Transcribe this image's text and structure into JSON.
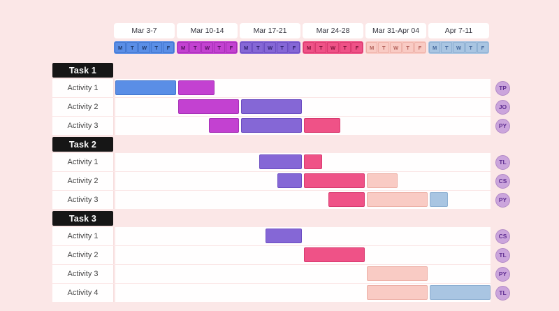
{
  "page": {
    "background": "#FBE7E7",
    "row_background": "#FFFEFE",
    "task_header_background": "#161616"
  },
  "palette": {
    "blue": {
      "fill": "#5A8EE6",
      "border": "#4276CE",
      "text": "#1E3A6E"
    },
    "magenta": {
      "fill": "#C341D1",
      "border": "#A630B6",
      "text": "#531060"
    },
    "purple": {
      "fill": "#8567D6",
      "border": "#6C4DC2",
      "text": "#2F2070"
    },
    "pink": {
      "fill": "#EF5287",
      "border": "#D83A6F",
      "text": "#7C1238"
    },
    "light_pink": {
      "fill": "#F9CBC4",
      "border": "#EDB0A7",
      "text": "#B3615A"
    },
    "light_blue": {
      "fill": "#A9C5E2",
      "border": "#8DAFD2",
      "text": "#46699C"
    }
  },
  "badge_style": {
    "bg": "#CBA5DC",
    "border": "#B289C7",
    "text_color": "#5F2D91"
  },
  "header": {
    "weeks": [
      {
        "label": "Mar 3-7",
        "color": "blue"
      },
      {
        "label": "Mar 10-14",
        "color": "magenta"
      },
      {
        "label": "Mar 17-21",
        "color": "purple"
      },
      {
        "label": "Mar 24-28",
        "color": "pink"
      },
      {
        "label": "Mar 31-Apr 04",
        "color": "light_pink"
      },
      {
        "label": "Apr 7-11",
        "color": "light_blue"
      }
    ],
    "day_labels": [
      "M",
      "T",
      "W",
      "T",
      "F"
    ]
  },
  "chart_data": {
    "type": "bar",
    "subtype": "gantt-weekly",
    "days_per_week": 5,
    "total_days": 30,
    "x_categories": [
      "Mar 3-7",
      "Mar 10-14",
      "Mar 17-21",
      "Mar 24-28",
      "Mar 31-Apr 04",
      "Apr 7-11"
    ],
    "tasks": [
      {
        "name": "Task 1",
        "activities": [
          {
            "name": "Activity 1",
            "assignee": "TP",
            "segments": [
              {
                "start": 0,
                "end": 5,
                "color": "blue"
              },
              {
                "start": 5,
                "end": 8,
                "color": "magenta"
              }
            ]
          },
          {
            "name": "Activity 2",
            "assignee": "JO",
            "segments": [
              {
                "start": 5,
                "end": 10,
                "color": "magenta"
              },
              {
                "start": 10,
                "end": 15,
                "color": "purple"
              }
            ]
          },
          {
            "name": "Activity 3",
            "assignee": "PY",
            "segments": [
              {
                "start": 7.5,
                "end": 10,
                "color": "magenta"
              },
              {
                "start": 10,
                "end": 15,
                "color": "purple"
              },
              {
                "start": 15,
                "end": 18,
                "color": "pink"
              }
            ]
          }
        ]
      },
      {
        "name": "Task 2",
        "activities": [
          {
            "name": "Activity 1",
            "assignee": "TL",
            "segments": [
              {
                "start": 11.5,
                "end": 15,
                "color": "purple"
              },
              {
                "start": 15,
                "end": 16.5,
                "color": "pink"
              }
            ]
          },
          {
            "name": "Activity 2",
            "assignee": "CS",
            "segments": [
              {
                "start": 13,
                "end": 15,
                "color": "purple"
              },
              {
                "start": 15,
                "end": 20,
                "color": "pink"
              },
              {
                "start": 20,
                "end": 22.5,
                "color": "light_pink"
              }
            ]
          },
          {
            "name": "Activity 3",
            "assignee": "PY",
            "segments": [
              {
                "start": 17,
                "end": 20,
                "color": "pink"
              },
              {
                "start": 20,
                "end": 25,
                "color": "light_pink"
              },
              {
                "start": 25,
                "end": 26.5,
                "color": "light_blue"
              }
            ]
          }
        ]
      },
      {
        "name": "Task 3",
        "activities": [
          {
            "name": "Activity 1",
            "assignee": "CS",
            "segments": [
              {
                "start": 12,
                "end": 15,
                "color": "purple"
              }
            ]
          },
          {
            "name": "Activity 2",
            "assignee": "TL",
            "segments": [
              {
                "start": 15,
                "end": 20,
                "color": "pink"
              }
            ]
          },
          {
            "name": "Activity 3",
            "assignee": "PY",
            "segments": [
              {
                "start": 20,
                "end": 25,
                "color": "light_pink"
              }
            ]
          },
          {
            "name": "Activity 4",
            "assignee": "TL",
            "segments": [
              {
                "start": 20,
                "end": 25,
                "color": "light_pink"
              },
              {
                "start": 25,
                "end": 30,
                "color": "light_blue"
              }
            ]
          }
        ]
      }
    ]
  }
}
